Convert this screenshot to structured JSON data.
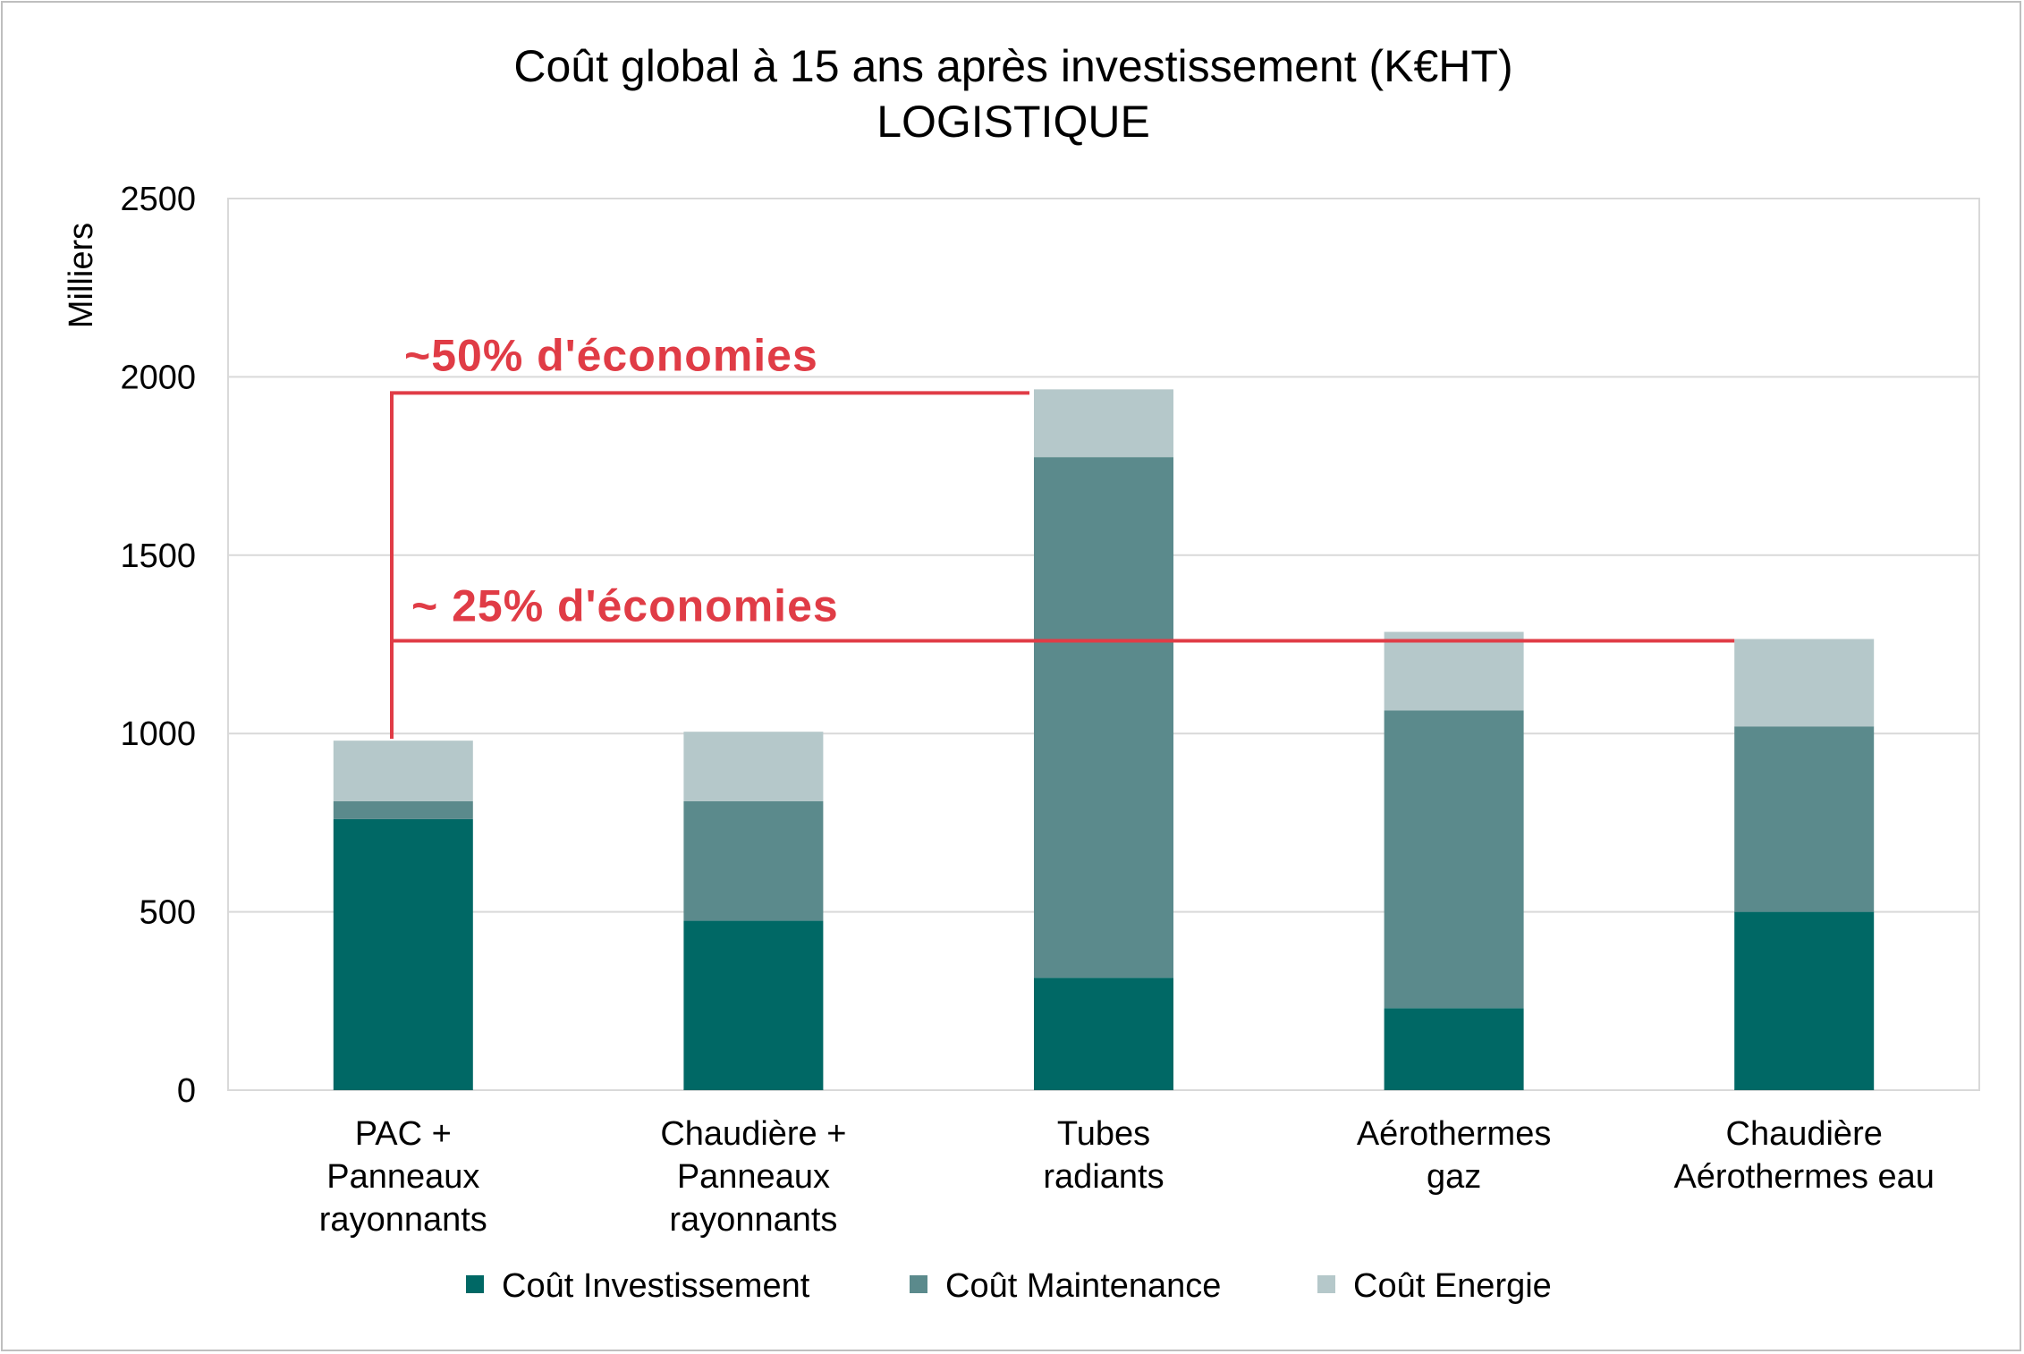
{
  "chart_data": {
    "type": "bar",
    "stacked": true,
    "title": [
      "Coût global à 15 ans après investissement (K€HT)",
      "LOGISTIQUE"
    ],
    "ylabel": "Milliers",
    "xlabel": "",
    "ylim": [
      0,
      2500
    ],
    "yticks": [
      0,
      500,
      1000,
      1500,
      2000,
      2500
    ],
    "grid": true,
    "legend_position": "bottom",
    "categories": [
      [
        "PAC +",
        "Panneaux",
        "rayonnants"
      ],
      [
        "Chaudière +",
        "Panneaux",
        "rayonnants"
      ],
      [
        "Tubes",
        "radiants"
      ],
      [
        "Aérothermes",
        "gaz"
      ],
      [
        "Chaudière",
        "Aérothermes eau"
      ]
    ],
    "series": [
      {
        "name": "Coût Investissement",
        "color": "#006865",
        "values": [
          760,
          475,
          315,
          230,
          500
        ]
      },
      {
        "name": "Coût Maintenance",
        "color": "#5b8a8c",
        "values": [
          50,
          335,
          1460,
          835,
          520
        ]
      },
      {
        "name": "Coût Energie",
        "color": "#b5c8ca",
        "values": [
          170,
          195,
          190,
          220,
          245
        ]
      }
    ],
    "annotations": [
      {
        "text": "~50% d'économies",
        "color": "#e03c46",
        "from_category": 0,
        "to_category": 2,
        "level": 1955
      },
      {
        "text": "~ 25% d'économies",
        "color": "#e03c46",
        "from_category": 0,
        "to_category": 4,
        "level": 1260
      }
    ]
  }
}
